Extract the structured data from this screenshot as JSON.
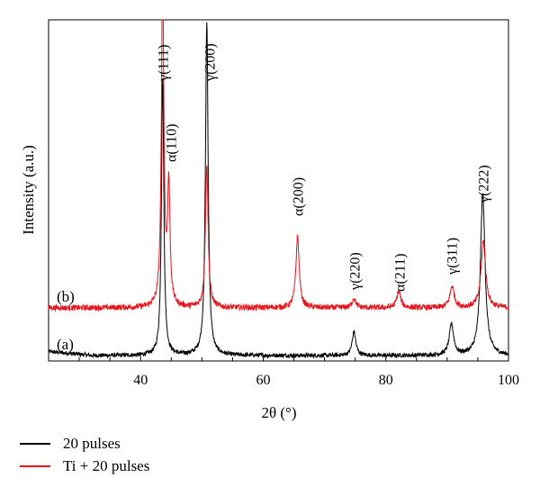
{
  "chart_data": {
    "type": "line",
    "title": "",
    "xlabel": "2θ (°)",
    "ylabel": "Intensity (a.u.)",
    "xlim": [
      25,
      100
    ],
    "xticks": [
      40,
      60,
      80,
      100
    ],
    "grid": false,
    "legend_position": "bottom-left, below plot",
    "series": [
      {
        "name": "20 pulses",
        "label": "(a)",
        "color": "#000000",
        "baseline": 0,
        "peaks": [
          {
            "x": 43.6,
            "height": 58
          },
          {
            "x": 50.8,
            "height": 70
          },
          {
            "x": 74.8,
            "height": 5
          },
          {
            "x": 90.7,
            "height": 6.5
          },
          {
            "x": 95.8,
            "height": 34
          }
        ]
      },
      {
        "name": "Ti + 20 pulses",
        "label": "(b)",
        "color": "#e8141b",
        "baseline": 10,
        "peaks": [
          {
            "x": 43.6,
            "height": 70
          },
          {
            "x": 44.6,
            "height": 25
          },
          {
            "x": 50.8,
            "height": 30
          },
          {
            "x": 65.6,
            "height": 15
          },
          {
            "x": 74.8,
            "height": 2
          },
          {
            "x": 82.1,
            "height": 3.5
          },
          {
            "x": 90.8,
            "height": 4.5
          },
          {
            "x": 95.9,
            "height": 14
          }
        ]
      }
    ],
    "annotations": [
      {
        "text": "γ(111)",
        "x": 43.6
      },
      {
        "text": "γ(200)",
        "x": 51.2
      },
      {
        "text": "α(110)",
        "x": 44.9
      },
      {
        "text": "α(200)",
        "x": 65.6
      },
      {
        "text": "γ(220)",
        "x": 74.8
      },
      {
        "text": "α(211)",
        "x": 82.2
      },
      {
        "text": "γ(311)",
        "x": 90.7
      },
      {
        "text": "γ(222)",
        "x": 95.8
      }
    ]
  }
}
